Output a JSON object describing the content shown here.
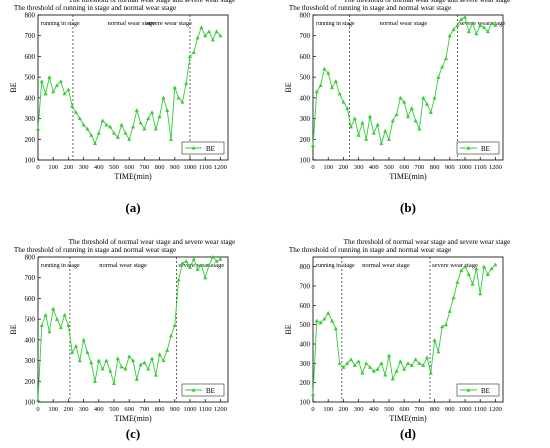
{
  "chart_data": [
    {
      "type": "line",
      "panel_label": "(a)",
      "xlabel": "TIME(min)",
      "ylabel": "BE",
      "xlim": [
        0,
        1250
      ],
      "ylim": [
        100,
        800
      ],
      "xticks": [
        0,
        100,
        200,
        300,
        400,
        500,
        600,
        700,
        800,
        900,
        1000,
        1100,
        1200
      ],
      "yticks": [
        100,
        200,
        300,
        400,
        500,
        600,
        700,
        800
      ],
      "grid": false,
      "legend_position": "bottom-right",
      "series": [
        {
          "name": "BE",
          "color": "#33cc33",
          "x": [
            0,
            25,
            50,
            75,
            100,
            125,
            150,
            175,
            200,
            225,
            250,
            275,
            300,
            325,
            350,
            375,
            400,
            425,
            450,
            475,
            500,
            525,
            550,
            575,
            600,
            625,
            650,
            675,
            700,
            725,
            750,
            775,
            800,
            825,
            850,
            875,
            900,
            925,
            950,
            975,
            1000,
            1025,
            1050,
            1075,
            1100,
            1125,
            1150,
            1175,
            1200
          ],
          "y": [
            250,
            480,
            420,
            500,
            430,
            460,
            480,
            420,
            440,
            360,
            330,
            300,
            270,
            250,
            220,
            180,
            230,
            290,
            270,
            260,
            230,
            210,
            270,
            230,
            200,
            260,
            340,
            280,
            250,
            300,
            330,
            250,
            310,
            400,
            340,
            200,
            450,
            400,
            380,
            470,
            600,
            620,
            690,
            740,
            700,
            720,
            680,
            720,
            700
          ]
        }
      ],
      "annotations": [
        {
          "label": "The threshold of running in stage and normal wear stage",
          "x": 230
        },
        {
          "label": "The threshold of normal wear stage and severe wear stage",
          "x": 1000
        }
      ],
      "stages": [
        "running in stage",
        "normal wear stage",
        "severe wear stage"
      ]
    },
    {
      "type": "line",
      "panel_label": "(b)",
      "xlabel": "TIME(min)",
      "ylabel": "BE",
      "xlim": [
        0,
        1250
      ],
      "ylim": [
        100,
        800
      ],
      "xticks": [
        0,
        100,
        200,
        300,
        400,
        500,
        600,
        700,
        800,
        900,
        1000,
        1100,
        1200
      ],
      "yticks": [
        100,
        200,
        300,
        400,
        500,
        600,
        700,
        800
      ],
      "grid": false,
      "legend_position": "bottom-right",
      "series": [
        {
          "name": "BE",
          "color": "#33cc33",
          "x": [
            0,
            25,
            50,
            75,
            100,
            125,
            150,
            175,
            200,
            225,
            250,
            275,
            300,
            325,
            350,
            375,
            400,
            425,
            450,
            475,
            500,
            525,
            550,
            575,
            600,
            625,
            650,
            675,
            700,
            725,
            750,
            775,
            800,
            825,
            850,
            875,
            900,
            925,
            950,
            975,
            1000,
            1025,
            1050,
            1075,
            1100,
            1125,
            1150,
            1175,
            1200
          ],
          "y": [
            170,
            430,
            460,
            540,
            520,
            450,
            480,
            420,
            380,
            350,
            260,
            300,
            220,
            280,
            200,
            310,
            230,
            270,
            180,
            240,
            200,
            290,
            320,
            400,
            380,
            310,
            350,
            290,
            250,
            400,
            370,
            330,
            400,
            500,
            550,
            590,
            700,
            730,
            750,
            780,
            790,
            720,
            760,
            710,
            750,
            740,
            720,
            760,
            750
          ]
        }
      ],
      "annotations": [
        {
          "label": "The threshold of running in stage and normal wear stage",
          "x": 240
        },
        {
          "label": "The threshold of normal wear stage and severe wear stage",
          "x": 950
        }
      ],
      "stages": [
        "running in stage",
        "normal wear stage",
        "severe wear stage"
      ]
    },
    {
      "type": "line",
      "panel_label": "(c)",
      "xlabel": "TIME(min)",
      "ylabel": "BE",
      "xlim": [
        0,
        1250
      ],
      "ylim": [
        100,
        800
      ],
      "xticks": [
        0,
        100,
        200,
        300,
        400,
        500,
        600,
        700,
        800,
        900,
        1000,
        1100,
        1200
      ],
      "yticks": [
        100,
        200,
        300,
        400,
        500,
        600,
        700,
        800
      ],
      "grid": false,
      "legend_position": "bottom-right",
      "series": [
        {
          "name": "BE",
          "color": "#33cc33",
          "x": [
            0,
            25,
            50,
            75,
            100,
            125,
            150,
            175,
            200,
            225,
            250,
            275,
            300,
            325,
            350,
            375,
            400,
            425,
            450,
            475,
            500,
            525,
            550,
            575,
            600,
            625,
            650,
            675,
            700,
            725,
            750,
            775,
            800,
            825,
            850,
            875,
            900,
            925,
            950,
            975,
            1000,
            1025,
            1050,
            1075,
            1100,
            1125,
            1150,
            1175,
            1200
          ],
          "y": [
            110,
            470,
            520,
            440,
            550,
            500,
            460,
            520,
            470,
            340,
            370,
            300,
            400,
            340,
            290,
            200,
            300,
            260,
            300,
            250,
            190,
            310,
            270,
            260,
            320,
            300,
            210,
            280,
            290,
            260,
            310,
            230,
            330,
            300,
            350,
            420,
            470,
            690,
            770,
            780,
            750,
            790,
            740,
            760,
            700,
            760,
            800,
            780,
            790
          ]
        }
      ],
      "annotations": [
        {
          "label": "The threshold of running in stage and normal wear stage",
          "x": 210
        },
        {
          "label": "The threshold of normal wear stage and severe wear stage",
          "x": 910
        }
      ],
      "stages": [
        "running in stage",
        "normal wear stage",
        "severe wear stage"
      ]
    },
    {
      "type": "line",
      "panel_label": "(d)",
      "xlabel": "TIME(min)",
      "ylabel": "BE",
      "xlim": [
        0,
        1250
      ],
      "ylim": [
        100,
        850
      ],
      "xticks": [
        0,
        100,
        200,
        300,
        400,
        500,
        600,
        700,
        800,
        900,
        1000,
        1100,
        1200
      ],
      "yticks": [
        100,
        200,
        300,
        400,
        500,
        600,
        700,
        800
      ],
      "grid": false,
      "legend_position": "bottom-right",
      "series": [
        {
          "name": "BE",
          "color": "#33cc33",
          "x": [
            0,
            25,
            50,
            75,
            100,
            125,
            150,
            175,
            200,
            225,
            250,
            275,
            300,
            325,
            350,
            375,
            400,
            425,
            450,
            475,
            500,
            525,
            550,
            575,
            600,
            625,
            650,
            675,
            700,
            725,
            750,
            775,
            800,
            825,
            850,
            875,
            900,
            925,
            950,
            975,
            1000,
            1025,
            1050,
            1075,
            1100,
            1125,
            1150,
            1175,
            1200
          ],
          "y": [
            140,
            520,
            510,
            530,
            560,
            520,
            480,
            300,
            280,
            300,
            320,
            290,
            310,
            250,
            300,
            280,
            260,
            270,
            300,
            240,
            340,
            220,
            260,
            310,
            270,
            300,
            290,
            320,
            300,
            290,
            330,
            250,
            420,
            360,
            490,
            500,
            570,
            640,
            720,
            780,
            800,
            760,
            710,
            790,
            660,
            800,
            760,
            790,
            810
          ]
        }
      ],
      "annotations": [
        {
          "label": "The threshold of running in stage and normal wear stage",
          "x": 190
        },
        {
          "label": "The threshold of normal wear stage and severe wear stage",
          "x": 770
        }
      ],
      "stages": [
        "running in stage",
        "normal wear stage",
        "severe wear stage"
      ]
    }
  ]
}
